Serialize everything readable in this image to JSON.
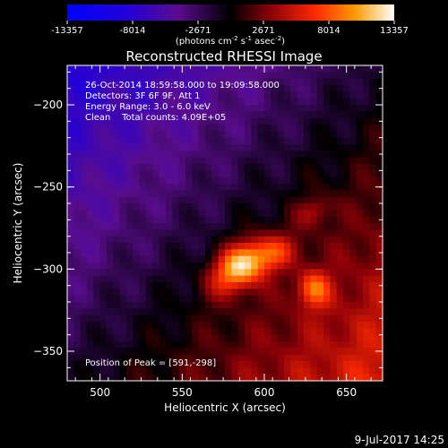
{
  "colorbar": {
    "tick_labels": [
      "-13357",
      "-8014",
      "-2671",
      "2671",
      "8014",
      "13357"
    ],
    "tick_values": [
      -13357,
      -8014,
      -2671,
      2671,
      8014,
      13357
    ],
    "range": [
      -13357,
      13357
    ],
    "units_main": "(photons cm",
    "units_exp1": "-2",
    "units_mid": " s",
    "units_exp2": "-1",
    "units_end": " asec",
    "units_exp3": "-2",
    "units_close": ")"
  },
  "chart_data": {
    "type": "heatmap",
    "title": "Reconstructed RHESSI Image",
    "xlabel": "Heliocentric X (arcsec)",
    "ylabel": "Heliocentric Y (arcsec)",
    "xlim": [
      480,
      672
    ],
    "ylim": [
      -368,
      -176
    ],
    "xticks": [
      500,
      550,
      600,
      650
    ],
    "yticks": [
      -200,
      -250,
      -300,
      -350
    ],
    "xtick_labels": [
      "500",
      "550",
      "600",
      "650"
    ],
    "ytick_labels": [
      "−200",
      "−250",
      "−300",
      "−350"
    ],
    "peak": [
      591,
      -298
    ],
    "sources": [
      {
        "x": 586,
        "y": -298,
        "amplitude": 12000,
        "sx": 14,
        "sy": 9,
        "rot": 35
      },
      {
        "x": 630,
        "y": -312,
        "amplitude": 6500,
        "sx": 7,
        "sy": 8,
        "rot": 0
      },
      {
        "x": 608,
        "y": -290,
        "amplitude": 4000,
        "sx": 10,
        "sy": 7,
        "rot": 20
      },
      {
        "x": 630,
        "y": -265,
        "amplitude": 3500,
        "sx": 8,
        "sy": 6,
        "rot": 30
      }
    ]
  },
  "annotations": {
    "time_range": "26-Oct-2014 18:59:58.000 to 19:09:58.000",
    "detectors": "Detectors: 3F 6F 9F, Att 1",
    "energy": "Energy Range: 3.0 - 6.0 keV",
    "clean": "Clean    Total counts: 4.09E+05",
    "peak_text": "Position of Peak = [591,-298]"
  },
  "footer": {
    "timestamp": "9-Jul-2017 14:25"
  },
  "colors": {
    "background": "#000000",
    "text": "#ffffff"
  }
}
